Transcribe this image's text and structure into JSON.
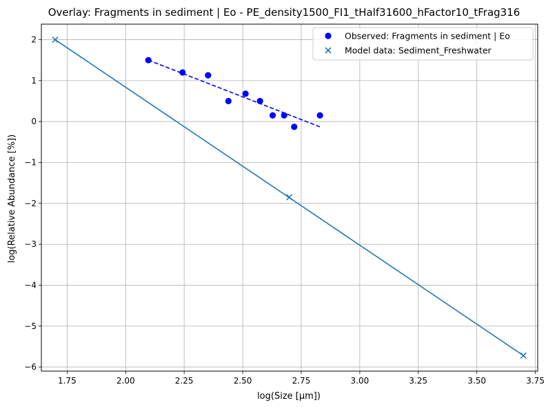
{
  "chart_data": {
    "type": "scatter",
    "title": "Overlay: Fragments in sediment | Eo - PE_density1500_FI1_tHalf31600_hFactor10_tFrag316",
    "xlabel": "log(Size [µm])",
    "ylabel": "log(Relative Abundance [%])",
    "xlim": [
      1.64,
      3.76
    ],
    "ylim": [
      -6.1,
      2.38
    ],
    "x_ticks": [
      1.75,
      2.0,
      2.25,
      2.5,
      2.75,
      3.0,
      3.25,
      3.5,
      3.75
    ],
    "x_tick_labels": [
      "1.75",
      "2.00",
      "2.25",
      "2.50",
      "2.75",
      "3.00",
      "3.25",
      "3.50",
      "3.75"
    ],
    "y_ticks": [
      -6,
      -5,
      -4,
      -3,
      -2,
      -1,
      0,
      1,
      2
    ],
    "y_tick_labels": [
      "−6",
      "−5",
      "−4",
      "−3",
      "−2",
      "−1",
      "0",
      "1",
      "2"
    ],
    "grid": true,
    "legend_position": "top-right",
    "series": [
      {
        "name": "Observed: Fragments in sediment | Eo",
        "kind": "scatter",
        "marker": "circle",
        "color": "#0000ff",
        "points": [
          {
            "x": 2.097,
            "y": 1.5
          },
          {
            "x": 2.243,
            "y": 1.2
          },
          {
            "x": 2.352,
            "y": 1.13
          },
          {
            "x": 2.439,
            "y": 0.5
          },
          {
            "x": 2.512,
            "y": 0.68
          },
          {
            "x": 2.574,
            "y": 0.5
          },
          {
            "x": 2.628,
            "y": 0.15
          },
          {
            "x": 2.677,
            "y": 0.15
          },
          {
            "x": 2.72,
            "y": -0.13
          },
          {
            "x": 2.83,
            "y": 0.15
          }
        ]
      },
      {
        "name": "Model data: Sediment_Freshwater",
        "kind": "scatter",
        "marker": "x",
        "color": "#1f77b4",
        "points": [
          {
            "x": 1.699,
            "y": 2.0
          },
          {
            "x": 2.699,
            "y": -1.85
          },
          {
            "x": 3.699,
            "y": -5.72
          }
        ]
      }
    ],
    "lines": [
      {
        "style": "dashed",
        "color": "#0000ff",
        "points": [
          {
            "x": 2.097,
            "y": 1.5
          },
          {
            "x": 2.83,
            "y": -0.13
          }
        ]
      },
      {
        "style": "solid",
        "color": "#1f77b4",
        "points": [
          {
            "x": 1.699,
            "y": 2.0
          },
          {
            "x": 3.699,
            "y": -5.72
          }
        ]
      }
    ]
  }
}
